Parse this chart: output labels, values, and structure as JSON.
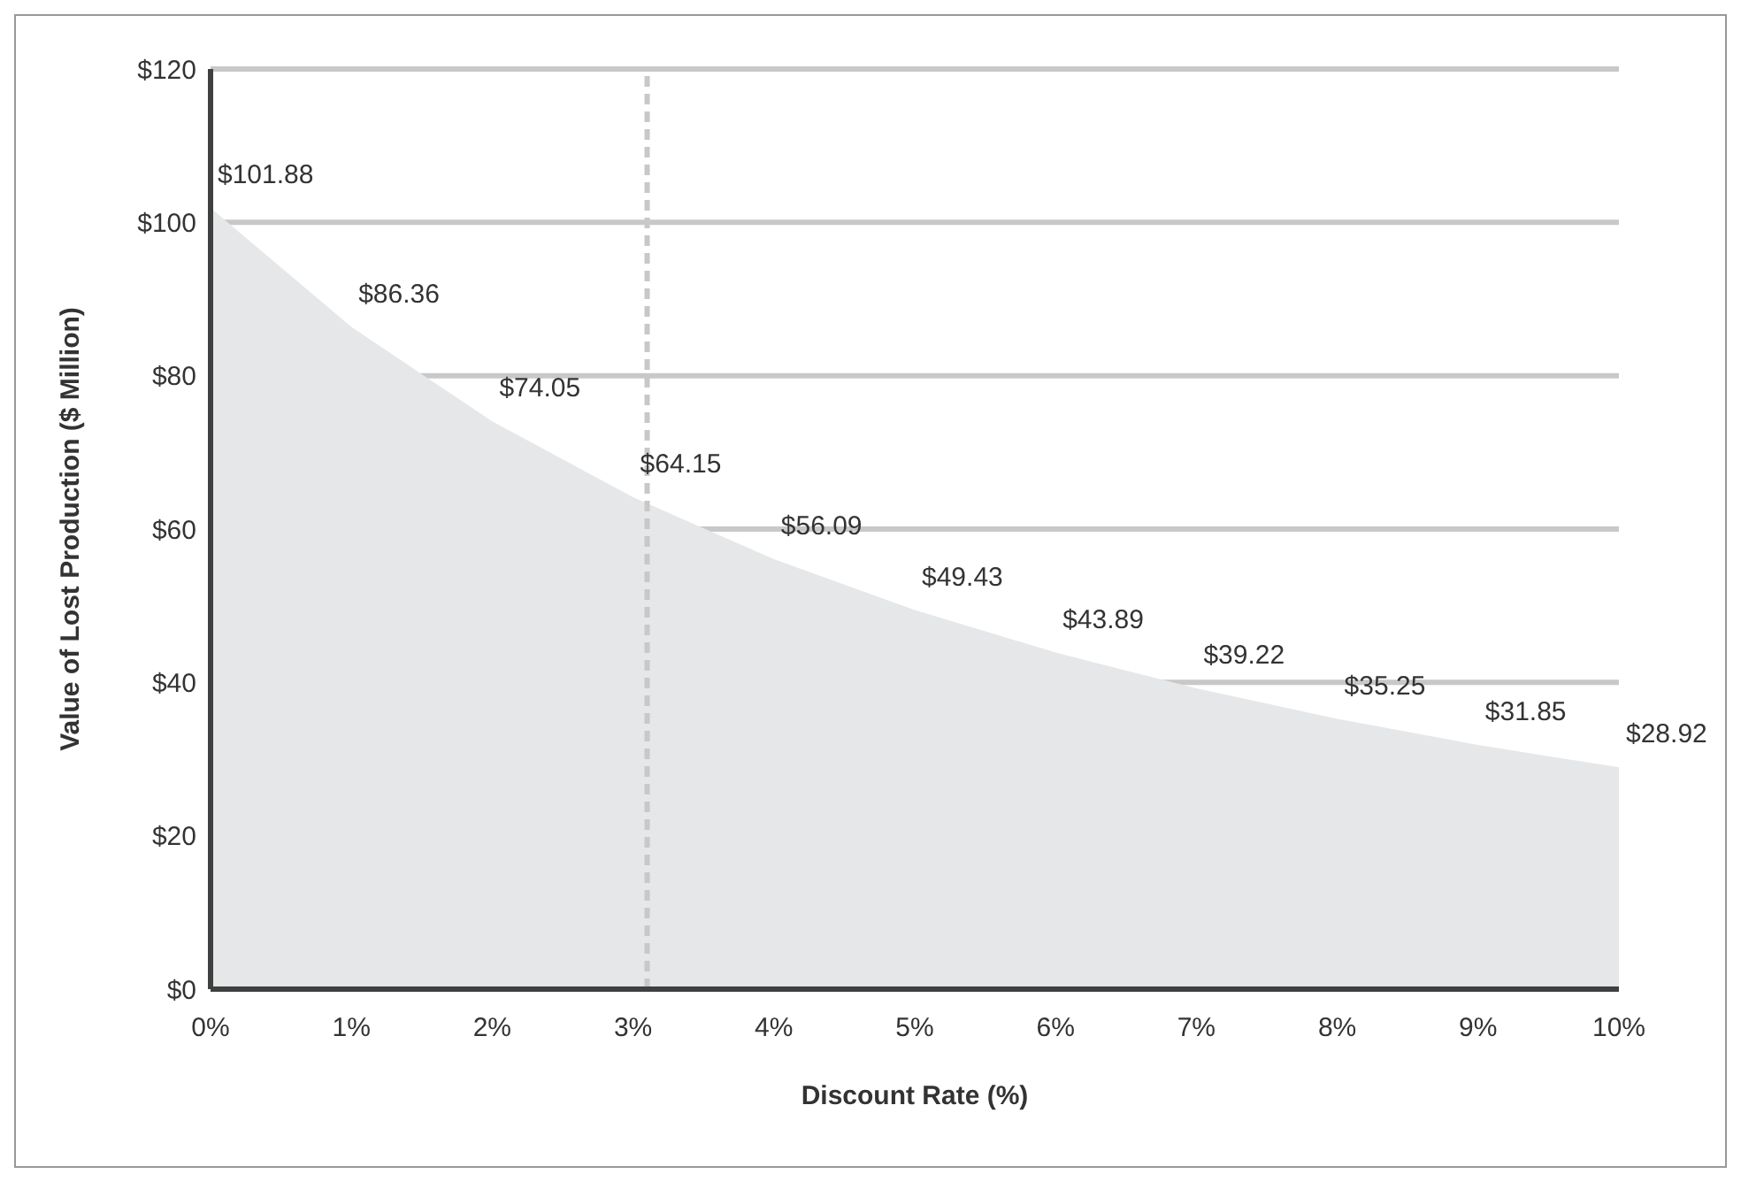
{
  "chart_data": {
    "type": "area",
    "xlabel": "Discount Rate (%)",
    "ylabel": "Value of Lost Production ($ Million)",
    "x": [
      0,
      1,
      2,
      3,
      4,
      5,
      6,
      7,
      8,
      9,
      10
    ],
    "values": [
      101.88,
      86.36,
      74.05,
      64.15,
      56.09,
      49.43,
      43.89,
      39.22,
      35.25,
      31.85,
      28.92
    ],
    "value_labels": [
      "$101.88",
      "$86.36",
      "$74.05",
      "$64.15",
      "$56.09",
      "$49.43",
      "$43.89",
      "$39.22",
      "$35.25",
      "$31.85",
      "$28.92"
    ],
    "color": "#e6e7e8",
    "xlim": [
      0,
      10
    ],
    "xticks": [
      {
        "value": 0,
        "label": "0%"
      },
      {
        "value": 1,
        "label": "1%"
      },
      {
        "value": 2,
        "label": "2%"
      },
      {
        "value": 3,
        "label": "3%"
      },
      {
        "value": 4,
        "label": "4%"
      },
      {
        "value": 5,
        "label": "5%"
      },
      {
        "value": 6,
        "label": "6%"
      },
      {
        "value": 7,
        "label": "7%"
      },
      {
        "value": 8,
        "label": "8%"
      },
      {
        "value": 9,
        "label": "9%"
      },
      {
        "value": 10,
        "label": "10%"
      }
    ],
    "ylim": [
      0,
      120
    ],
    "yticks": [
      {
        "value": 0,
        "label": "$0"
      },
      {
        "value": 20,
        "label": "$20"
      },
      {
        "value": 40,
        "label": "$40"
      },
      {
        "value": 60,
        "label": "$60"
      },
      {
        "value": 80,
        "label": "$80"
      },
      {
        "value": 100,
        "label": "$100"
      },
      {
        "value": 120,
        "label": "$120"
      }
    ],
    "ref_lines": [
      {
        "axis": "x",
        "value": 3.1,
        "color": "#c8c8c8",
        "line_style": "dashed"
      }
    ],
    "grid": "y"
  }
}
